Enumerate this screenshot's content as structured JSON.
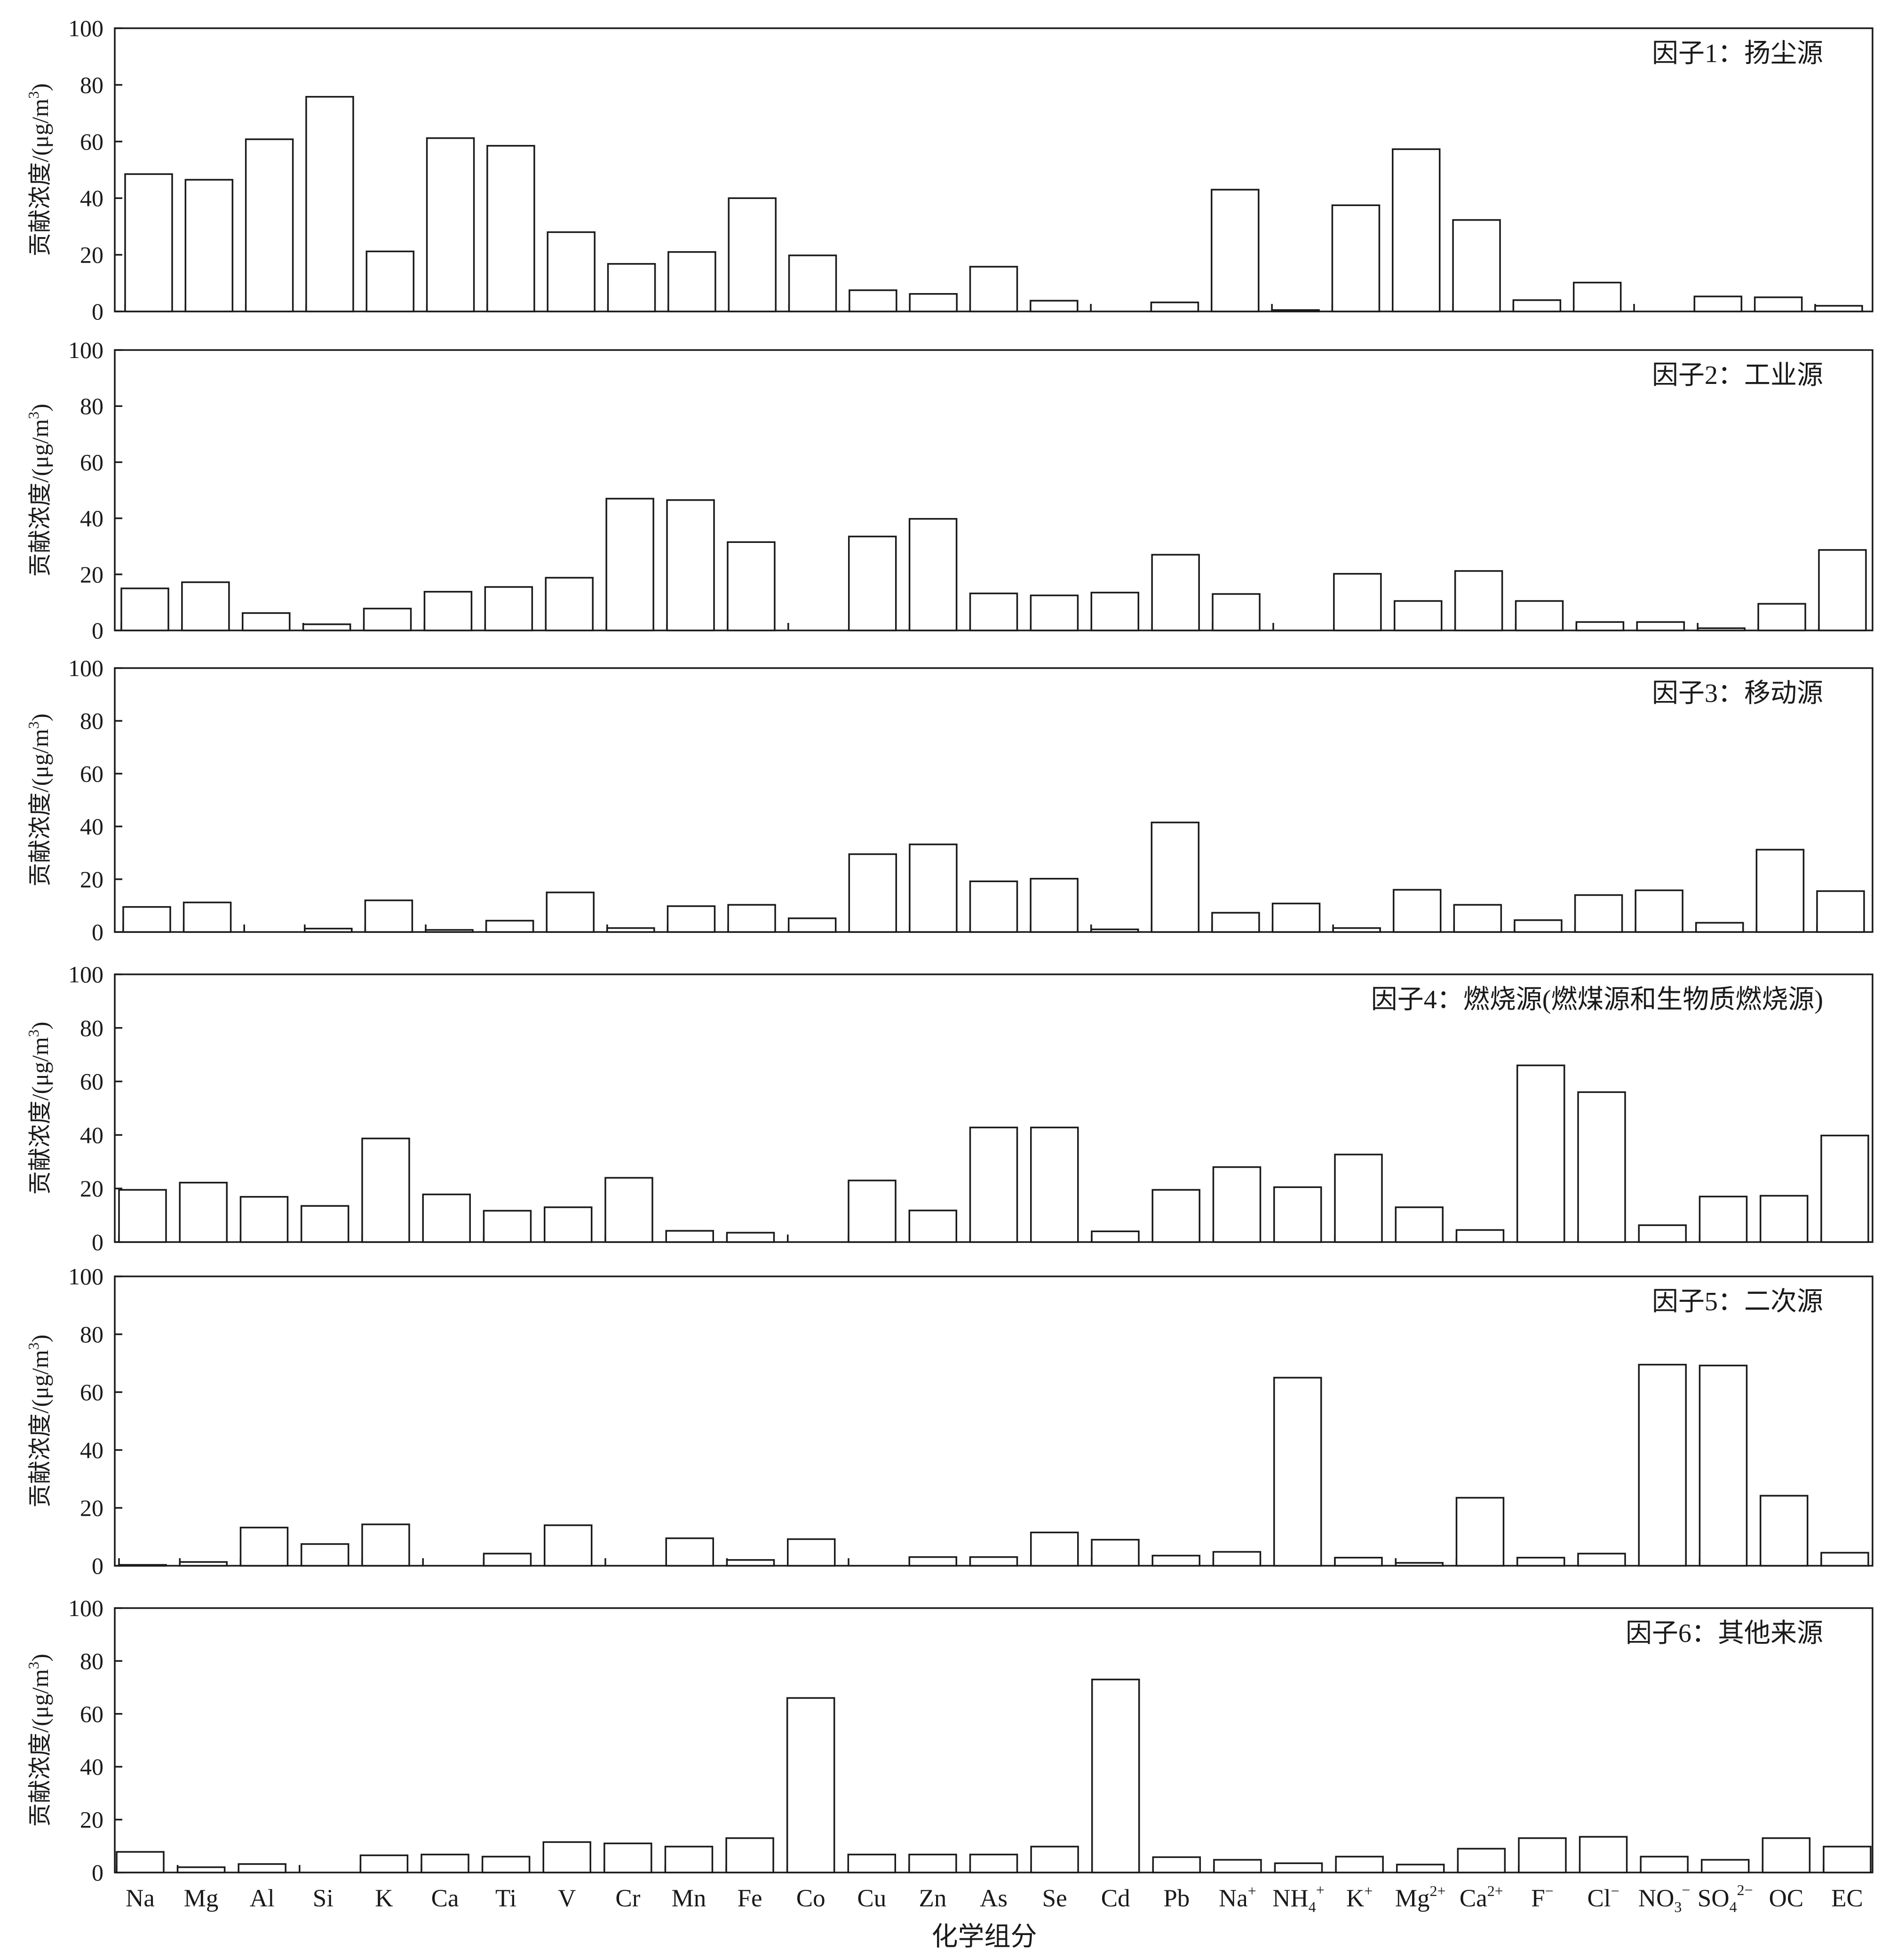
{
  "chart_data": {
    "type": "bar",
    "layout": "6 vertically stacked panels sharing the category axis",
    "xlabel": "化学组分",
    "ylabel": "贡献浓度/(μg/m³)",
    "ylabel_parts": {
      "main": "贡献浓度/(μg/m",
      "sup": "3",
      "tail": ")"
    },
    "ylim": [
      0,
      100
    ],
    "yticks": [
      0,
      20,
      40,
      60,
      80,
      100
    ],
    "legend": "none",
    "grid": false,
    "categories": [
      {
        "base": "Na",
        "sup": ""
      },
      {
        "base": "Mg",
        "sup": ""
      },
      {
        "base": "Al",
        "sup": ""
      },
      {
        "base": "Si",
        "sup": ""
      },
      {
        "base": "K",
        "sup": ""
      },
      {
        "base": "Ca",
        "sup": ""
      },
      {
        "base": "Ti",
        "sup": ""
      },
      {
        "base": "V",
        "sup": ""
      },
      {
        "base": "Cr",
        "sup": ""
      },
      {
        "base": "Mn",
        "sup": ""
      },
      {
        "base": "Fe",
        "sup": ""
      },
      {
        "base": "Co",
        "sup": ""
      },
      {
        "base": "Cu",
        "sup": ""
      },
      {
        "base": "Zn",
        "sup": ""
      },
      {
        "base": "As",
        "sup": ""
      },
      {
        "base": "Se",
        "sup": ""
      },
      {
        "base": "Cd",
        "sup": ""
      },
      {
        "base": "Pb",
        "sup": ""
      },
      {
        "base": "Na",
        "sup": "+"
      },
      {
        "base": "NH",
        "sub": "4",
        "sup": "+"
      },
      {
        "base": "K",
        "sup": "+"
      },
      {
        "base": "Mg",
        "sup": "2+"
      },
      {
        "base": "Ca",
        "sup": "2+"
      },
      {
        "base": "F",
        "sup": "−"
      },
      {
        "base": "Cl",
        "sup": "−"
      },
      {
        "base": "NO",
        "sub": "3",
        "sup": "−"
      },
      {
        "base": "SO",
        "sub": "4",
        "sup": "2−"
      },
      {
        "base": "OC",
        "sup": ""
      },
      {
        "base": "EC",
        "sup": ""
      }
    ],
    "series": [
      {
        "name": "因子1：扬尘源",
        "values": [
          48.5,
          46.5,
          60.8,
          75.8,
          21.2,
          61.2,
          58.5,
          28,
          16.8,
          21,
          40,
          19.8,
          7.5,
          6.2,
          15.8,
          3.8,
          0,
          3.2,
          43,
          0.5,
          37.5,
          57.3,
          32.3,
          4,
          10.2,
          0,
          5.3,
          5,
          2
        ]
      },
      {
        "name": "因子2：工业源",
        "values": [
          15,
          17.2,
          6.2,
          2.2,
          7.8,
          13.8,
          15.5,
          18.8,
          47,
          46.5,
          31.5,
          0,
          33.5,
          39.8,
          13.2,
          12.5,
          13.5,
          27,
          13,
          0,
          20.2,
          10.5,
          21.2,
          10.5,
          3,
          3,
          0.8,
          9.5,
          28.7
        ]
      },
      {
        "name": "因子3：移动源",
        "values": [
          9.5,
          11.2,
          0,
          1.3,
          12,
          0.8,
          4.3,
          15,
          1.5,
          9.8,
          10.3,
          5.2,
          29.5,
          33.2,
          19.2,
          20.2,
          1,
          41.5,
          7.3,
          10.8,
          1.5,
          16,
          10.3,
          4.5,
          14,
          15.8,
          3.5,
          31.2,
          15.5
        ]
      },
      {
        "name": "因子4：燃烧源(燃煤源和生物质燃烧源)",
        "values": [
          19.5,
          22.2,
          16.9,
          13.5,
          38.7,
          17.8,
          11.7,
          13,
          24,
          4.2,
          3.5,
          0,
          23,
          11.8,
          42.8,
          42.8,
          4,
          19.5,
          28,
          20.5,
          32.7,
          13,
          4.5,
          66,
          56,
          6.3,
          17,
          17.3,
          39.8
        ]
      },
      {
        "name": "因子5：二次源",
        "values": [
          0.3,
          1.3,
          13.2,
          7.5,
          14.3,
          0,
          4.2,
          14,
          0,
          9.5,
          2,
          9.2,
          0,
          3,
          3,
          11.5,
          9,
          3.5,
          4.8,
          65,
          2.8,
          1,
          23.5,
          2.8,
          4.2,
          69.5,
          69.2,
          24.2,
          4.5
        ]
      },
      {
        "name": "因子6：其他来源",
        "values": [
          7.8,
          2,
          3.2,
          0,
          6.5,
          6.8,
          6,
          11.5,
          11,
          9.8,
          13,
          66,
          6.8,
          6.8,
          6.8,
          9.8,
          73,
          5.8,
          4.8,
          3.5,
          6,
          3,
          9,
          13,
          13.5,
          6,
          4.8,
          13,
          9.8
        ]
      }
    ]
  }
}
